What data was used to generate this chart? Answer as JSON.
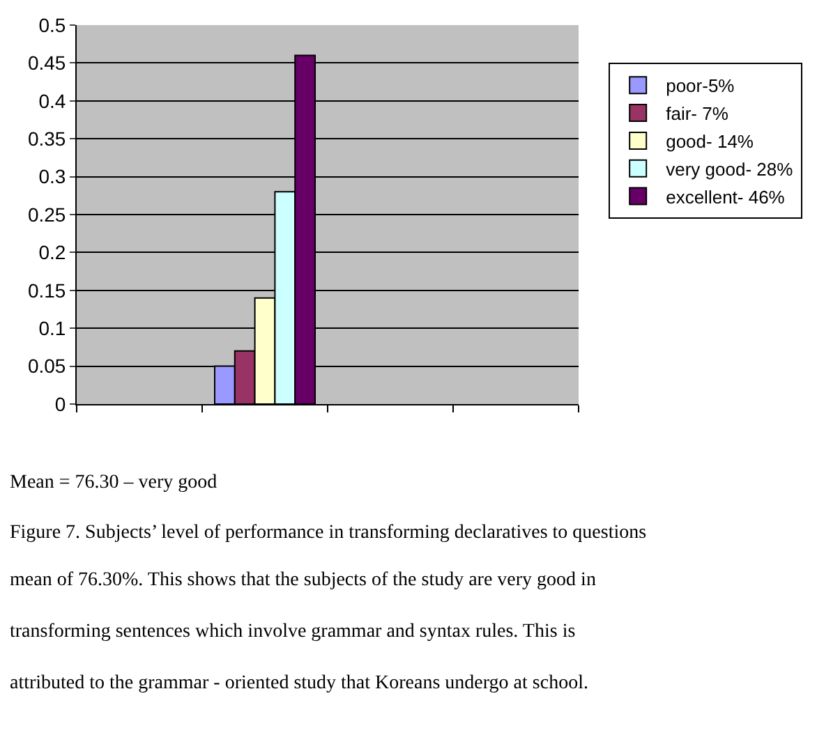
{
  "chart_data": {
    "type": "bar",
    "categories": [
      null,
      null,
      null,
      null
    ],
    "series": [
      {
        "name": "poor-5%",
        "color": "#9999ff",
        "values": [
          null,
          0.05,
          null,
          null
        ]
      },
      {
        "name": "fair- 7%",
        "color": "#993366",
        "values": [
          null,
          0.07,
          null,
          null
        ]
      },
      {
        "name": "good- 14%",
        "color": "#ffffcc",
        "values": [
          null,
          0.14,
          null,
          null
        ]
      },
      {
        "name": "very good- 28%",
        "color": "#ccffff",
        "values": [
          null,
          0.28,
          null,
          null
        ]
      },
      {
        "name": "excellent- 46%",
        "color": "#660066",
        "values": [
          null,
          0.46,
          null,
          null
        ]
      }
    ],
    "ylim": [
      0,
      0.5
    ],
    "yticks": [
      0,
      0.05,
      0.1,
      0.15,
      0.2,
      0.25,
      0.3,
      0.35,
      0.4,
      0.45,
      0.5
    ],
    "grid": "y",
    "legend": "right",
    "annotations": [
      "Mean = 76.30 – very good",
      "Figure 7. Subjects’ level of performance in transforming declaratives to questions",
      "mean of 76.30%. This shows that the subjects of the study are very good in",
      "transforming sentences which involve grammar and syntax rules. This is",
      "attributed to the grammar - oriented study that Koreans undergo at school."
    ]
  }
}
